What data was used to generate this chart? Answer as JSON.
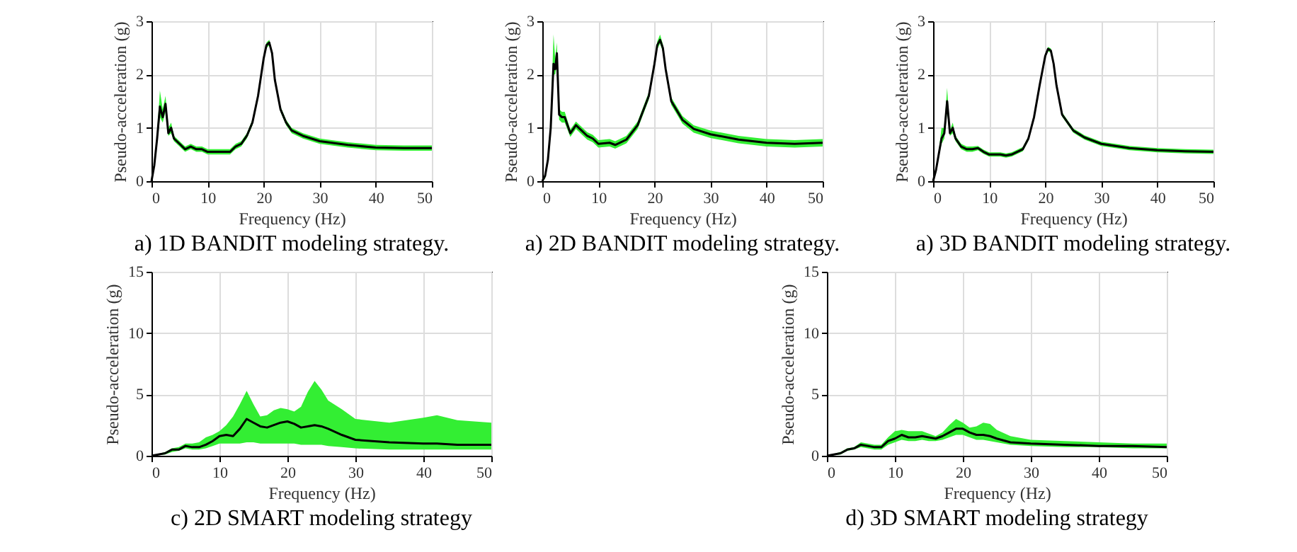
{
  "chart_data": [
    {
      "type": "line",
      "xlabel": "Frequency (Hz)",
      "ylabel": "Pseudo-acceleration (g)",
      "annotations": [
        "a) 1D BANDIT modeling strategy."
      ],
      "xlim": [
        0,
        50
      ],
      "xticks": [
        0,
        10,
        20,
        30,
        40,
        50
      ],
      "ylim": [
        0,
        3
      ],
      "yticks": [
        0,
        1,
        2,
        3
      ],
      "grid": true,
      "x": [
        0,
        0.5,
        1,
        1.5,
        2,
        2.5,
        3,
        3.5,
        4,
        5,
        6,
        7,
        8,
        9,
        10,
        12,
        14,
        15,
        16,
        17,
        18,
        19,
        20,
        20.5,
        21,
        21.5,
        22,
        23,
        24,
        25,
        27,
        30,
        35,
        40,
        45,
        50
      ],
      "series": [
        {
          "color": "#000000",
          "values": [
            0,
            0.3,
            0.8,
            1.4,
            1.2,
            1.45,
            0.9,
            1.0,
            0.8,
            0.7,
            0.6,
            0.65,
            0.6,
            0.6,
            0.55,
            0.55,
            0.55,
            0.65,
            0.7,
            0.85,
            1.1,
            1.6,
            2.3,
            2.55,
            2.6,
            2.4,
            1.9,
            1.35,
            1.1,
            0.95,
            0.85,
            0.75,
            0.68,
            0.63,
            0.62,
            0.62
          ],
          "lower": [
            0,
            0.25,
            0.7,
            1.2,
            1.1,
            1.3,
            0.85,
            0.9,
            0.75,
            0.65,
            0.55,
            0.6,
            0.55,
            0.55,
            0.5,
            0.5,
            0.5,
            0.6,
            0.65,
            0.8,
            1.05,
            1.55,
            2.25,
            2.5,
            2.55,
            2.35,
            1.85,
            1.3,
            1.05,
            0.9,
            0.8,
            0.7,
            0.63,
            0.58,
            0.57,
            0.57
          ],
          "upper": [
            0,
            0.35,
            0.9,
            1.7,
            1.35,
            1.6,
            1.0,
            1.1,
            0.85,
            0.75,
            0.65,
            0.7,
            0.65,
            0.65,
            0.6,
            0.6,
            0.6,
            0.7,
            0.75,
            0.9,
            1.15,
            1.65,
            2.35,
            2.6,
            2.65,
            2.45,
            1.95,
            1.4,
            1.15,
            1.0,
            0.9,
            0.8,
            0.73,
            0.68,
            0.67,
            0.67
          ]
        }
      ]
    },
    {
      "type": "line",
      "xlabel": "Frequency (Hz)",
      "ylabel": "Pseudo-acceleration (g)",
      "annotations": [
        "a) 2D BANDIT modeling strategy."
      ],
      "xlim": [
        0,
        50
      ],
      "xticks": [
        0,
        10,
        20,
        30,
        40,
        50
      ],
      "ylim": [
        0,
        3
      ],
      "yticks": [
        0,
        1,
        2,
        3
      ],
      "grid": true,
      "x": [
        0,
        0.5,
        1,
        1.5,
        2,
        2.3,
        2.6,
        3,
        3.5,
        4,
        5,
        6,
        7,
        8,
        9,
        10,
        12,
        13,
        15,
        17,
        19,
        20,
        20.5,
        21,
        21.5,
        22,
        23,
        25,
        27,
        30,
        35,
        40,
        45,
        50
      ],
      "series": [
        {
          "color": "#000000",
          "values": [
            0,
            0.1,
            0.4,
            1.0,
            2.2,
            2.1,
            2.4,
            1.25,
            1.2,
            1.2,
            0.9,
            1.05,
            0.95,
            0.85,
            0.8,
            0.7,
            0.72,
            0.68,
            0.78,
            1.05,
            1.6,
            2.2,
            2.55,
            2.65,
            2.5,
            2.1,
            1.5,
            1.15,
            0.98,
            0.88,
            0.78,
            0.72,
            0.7,
            0.72
          ],
          "lower": [
            0,
            0.05,
            0.35,
            0.9,
            2.0,
            2.0,
            2.2,
            1.15,
            1.1,
            1.1,
            0.83,
            0.98,
            0.88,
            0.78,
            0.73,
            0.63,
            0.65,
            0.61,
            0.71,
            0.98,
            1.53,
            2.13,
            2.48,
            2.58,
            2.43,
            2.03,
            1.43,
            1.08,
            0.91,
            0.81,
            0.71,
            0.65,
            0.63,
            0.65
          ],
          "upper": [
            0,
            0.15,
            0.45,
            1.1,
            2.75,
            2.3,
            2.6,
            1.35,
            1.3,
            1.3,
            0.97,
            1.12,
            1.02,
            0.92,
            0.87,
            0.77,
            0.79,
            0.75,
            0.85,
            1.12,
            1.67,
            2.27,
            2.62,
            2.75,
            2.57,
            2.17,
            1.57,
            1.22,
            1.05,
            0.95,
            0.85,
            0.79,
            0.77,
            0.79
          ]
        }
      ]
    },
    {
      "type": "line",
      "xlabel": "Frequency (Hz)",
      "ylabel": "Pseudo-acceleration (g)",
      "annotations": [
        "a) 3D BANDIT modeling strategy."
      ],
      "xlim": [
        0,
        50
      ],
      "xticks": [
        0,
        10,
        20,
        30,
        40,
        50
      ],
      "ylim": [
        0,
        3
      ],
      "yticks": [
        0,
        1,
        2,
        3
      ],
      "grid": true,
      "x": [
        0,
        0.5,
        1,
        1.5,
        2,
        2.5,
        3,
        3.5,
        4,
        5,
        6,
        7,
        8,
        9,
        10,
        12,
        13,
        14,
        15,
        16,
        17,
        18,
        19,
        20,
        20.5,
        21,
        21.5,
        22,
        23,
        25,
        27,
        30,
        35,
        40,
        45,
        50
      ],
      "series": [
        {
          "color": "#000000",
          "values": [
            0,
            0.2,
            0.5,
            0.8,
            0.9,
            1.5,
            0.9,
            1.0,
            0.8,
            0.65,
            0.6,
            0.6,
            0.62,
            0.55,
            0.5,
            0.5,
            0.48,
            0.5,
            0.55,
            0.6,
            0.8,
            1.2,
            1.8,
            2.35,
            2.48,
            2.45,
            2.2,
            1.8,
            1.25,
            0.95,
            0.82,
            0.7,
            0.62,
            0.58,
            0.56,
            0.55
          ],
          "lower": [
            0,
            0.15,
            0.45,
            0.7,
            0.8,
            1.3,
            0.85,
            0.9,
            0.75,
            0.6,
            0.55,
            0.55,
            0.58,
            0.51,
            0.46,
            0.46,
            0.44,
            0.46,
            0.51,
            0.56,
            0.76,
            1.16,
            1.76,
            2.31,
            2.44,
            2.41,
            2.16,
            1.76,
            1.21,
            0.91,
            0.78,
            0.66,
            0.58,
            0.54,
            0.52,
            0.51
          ],
          "upper": [
            0,
            0.25,
            0.55,
            1.0,
            1.0,
            1.75,
            0.95,
            1.1,
            0.85,
            0.7,
            0.65,
            0.65,
            0.66,
            0.59,
            0.54,
            0.54,
            0.52,
            0.54,
            0.59,
            0.64,
            0.84,
            1.24,
            1.84,
            2.39,
            2.52,
            2.49,
            2.24,
            1.84,
            1.29,
            0.99,
            0.86,
            0.74,
            0.66,
            0.62,
            0.6,
            0.59
          ]
        }
      ]
    },
    {
      "type": "line",
      "xlabel": "Frequency (Hz)",
      "ylabel": "Pseudo-acceleration (g)",
      "annotations": [
        "c) 2D SMART modeling strategy"
      ],
      "xlim": [
        0,
        50
      ],
      "xticks": [
        0,
        10,
        20,
        30,
        40,
        50
      ],
      "ylim": [
        0,
        15
      ],
      "yticks": [
        0,
        5,
        10,
        15
      ],
      "grid": true,
      "x": [
        0,
        2,
        3,
        4,
        5,
        6,
        7,
        8,
        9,
        10,
        11,
        12,
        13,
        14,
        15,
        16,
        17,
        18,
        19,
        20,
        21,
        22,
        23,
        24,
        25,
        26,
        28,
        30,
        35,
        40,
        42,
        45,
        50
      ],
      "series": [
        {
          "color": "#000000",
          "values": [
            0,
            0.2,
            0.5,
            0.5,
            0.8,
            0.7,
            0.7,
            0.9,
            1.2,
            1.6,
            1.7,
            1.6,
            2.2,
            3.0,
            2.7,
            2.4,
            2.3,
            2.5,
            2.7,
            2.8,
            2.6,
            2.3,
            2.4,
            2.5,
            2.4,
            2.2,
            1.7,
            1.3,
            1.1,
            1.0,
            1.0,
            0.9,
            0.9
          ],
          "lower": [
            0,
            0.1,
            0.3,
            0.4,
            0.6,
            0.5,
            0.5,
            0.6,
            0.8,
            1.0,
            1.0,
            1.0,
            1.0,
            1.1,
            1.1,
            1.0,
            1.0,
            1.0,
            1.0,
            1.0,
            1.0,
            0.9,
            0.9,
            0.9,
            0.9,
            0.8,
            0.7,
            0.6,
            0.5,
            0.5,
            0.5,
            0.5,
            0.5
          ],
          "upper": [
            0,
            0.3,
            0.6,
            0.7,
            1.0,
            1.0,
            1.1,
            1.5,
            1.7,
            2.0,
            2.5,
            3.2,
            4.2,
            5.3,
            4.2,
            3.2,
            3.3,
            3.7,
            3.9,
            3.8,
            3.6,
            4.0,
            5.2,
            6.1,
            5.4,
            4.5,
            3.8,
            3.0,
            2.7,
            3.1,
            3.3,
            2.9,
            2.7
          ]
        }
      ]
    },
    {
      "type": "line",
      "xlabel": "Frequency (Hz)",
      "ylabel": "Pseudo-acceleration (g)",
      "annotations": [
        "d) 3D SMART modeling strategy"
      ],
      "xlim": [
        0,
        50
      ],
      "xticks": [
        0,
        10,
        20,
        30,
        40,
        50
      ],
      "ylim": [
        0,
        15
      ],
      "yticks": [
        0,
        5,
        10,
        15
      ],
      "grid": true,
      "x": [
        0,
        2,
        3,
        4,
        5,
        6,
        7,
        8,
        9,
        10,
        11,
        12,
        13,
        14,
        15,
        16,
        17,
        18,
        19,
        20,
        21,
        22,
        23,
        24,
        25,
        27,
        30,
        35,
        40,
        45,
        50
      ],
      "series": [
        {
          "color": "#000000",
          "values": [
            0,
            0.2,
            0.5,
            0.6,
            0.9,
            0.8,
            0.7,
            0.7,
            1.2,
            1.4,
            1.7,
            1.5,
            1.5,
            1.6,
            1.5,
            1.4,
            1.6,
            1.9,
            2.2,
            2.2,
            1.9,
            1.7,
            1.7,
            1.6,
            1.4,
            1.1,
            1.0,
            0.9,
            0.8,
            0.8,
            0.7
          ],
          "lower": [
            0,
            0.1,
            0.4,
            0.5,
            0.7,
            0.6,
            0.5,
            0.5,
            0.9,
            1.1,
            1.3,
            1.2,
            1.2,
            1.3,
            1.2,
            1.2,
            1.3,
            1.5,
            1.7,
            1.7,
            1.5,
            1.3,
            1.3,
            1.2,
            1.1,
            0.9,
            0.8,
            0.7,
            0.7,
            0.6,
            0.6
          ],
          "upper": [
            0,
            0.3,
            0.6,
            0.7,
            1.1,
            1.0,
            0.9,
            0.9,
            1.5,
            2.0,
            2.1,
            2.0,
            2.0,
            2.0,
            1.8,
            1.6,
            1.9,
            2.5,
            3.0,
            2.7,
            2.3,
            2.4,
            2.7,
            2.6,
            2.1,
            1.6,
            1.3,
            1.2,
            1.1,
            1.0,
            1.0
          ]
        }
      ]
    }
  ]
}
